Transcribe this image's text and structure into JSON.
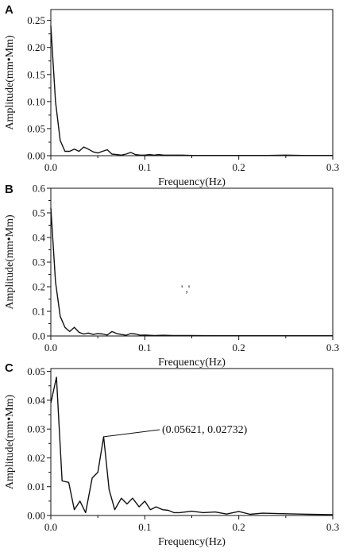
{
  "chart_data": [
    {
      "panel": "A",
      "type": "line",
      "xlabel": "Frequency(Hz)",
      "ylabel": "Amplitude(mm•Mm)",
      "xlim": [
        0,
        0.3
      ],
      "ylim": [
        0,
        0.27
      ],
      "xticks": [
        "0.0",
        "0.1",
        "0.2",
        "0.3"
      ],
      "yticks": [
        "0.00",
        "0.05",
        "0.10",
        "0.15",
        "0.20",
        "0.25"
      ],
      "x": [
        0.0,
        0.005,
        0.01,
        0.015,
        0.02,
        0.025,
        0.03,
        0.035,
        0.04,
        0.045,
        0.05,
        0.055,
        0.06,
        0.065,
        0.07,
        0.075,
        0.08,
        0.085,
        0.09,
        0.095,
        0.1,
        0.105,
        0.11,
        0.115,
        0.12,
        0.13,
        0.14,
        0.15,
        0.17,
        0.2,
        0.23,
        0.25,
        0.27,
        0.3
      ],
      "y": [
        0.24,
        0.1,
        0.028,
        0.008,
        0.008,
        0.012,
        0.008,
        0.016,
        0.012,
        0.007,
        0.005,
        0.008,
        0.011,
        0.003,
        0.002,
        0.001,
        0.003,
        0.006,
        0.002,
        0.001,
        0.001,
        0.002,
        0.001,
        0.002,
        0.001,
        0.001,
        0.001,
        0.0005,
        0.0005,
        0.0005,
        0.0005,
        0.001,
        0.0005,
        0.0005
      ]
    },
    {
      "panel": "B",
      "type": "line",
      "xlabel": "Frequency(Hz)",
      "ylabel": "Amplitude(mm•Mm)",
      "xlim": [
        0,
        0.3
      ],
      "ylim": [
        0,
        0.6
      ],
      "xticks": [
        "0.0",
        "0.1",
        "0.2",
        "0.3"
      ],
      "yticks": [
        "0.0",
        "0.1",
        "0.2",
        "0.3",
        "0.4",
        "0.5",
        "0.6"
      ],
      "x": [
        0.0,
        0.005,
        0.01,
        0.015,
        0.02,
        0.025,
        0.03,
        0.035,
        0.04,
        0.045,
        0.05,
        0.055,
        0.06,
        0.065,
        0.07,
        0.075,
        0.08,
        0.085,
        0.09,
        0.095,
        0.1,
        0.11,
        0.12,
        0.13,
        0.15,
        0.17,
        0.2,
        0.23,
        0.25,
        0.27,
        0.3
      ],
      "y": [
        0.52,
        0.22,
        0.08,
        0.035,
        0.018,
        0.035,
        0.015,
        0.008,
        0.012,
        0.006,
        0.01,
        0.008,
        0.004,
        0.018,
        0.01,
        0.006,
        0.003,
        0.01,
        0.008,
        0.003,
        0.004,
        0.002,
        0.003,
        0.002,
        0.002,
        0.001,
        0.001,
        0.001,
        0.001,
        0.001,
        0.001
      ]
    },
    {
      "panel": "C",
      "type": "line",
      "xlabel": "Frequency(Hz)",
      "ylabel": "Amplitude(mm•Mm)",
      "xlim": [
        0,
        0.3
      ],
      "ylim": [
        0,
        0.051
      ],
      "xticks": [
        "0.0",
        "0.1",
        "0.2",
        "0.3"
      ],
      "yticks": [
        "0.00",
        "0.01",
        "0.02",
        "0.03",
        "0.04",
        "0.05"
      ],
      "x": [
        0.0,
        0.006,
        0.012,
        0.019,
        0.025,
        0.031,
        0.037,
        0.044,
        0.05,
        0.05621,
        0.062,
        0.068,
        0.075,
        0.081,
        0.087,
        0.094,
        0.1,
        0.106,
        0.112,
        0.119,
        0.125,
        0.131,
        0.137,
        0.15,
        0.162,
        0.175,
        0.187,
        0.2,
        0.212,
        0.225,
        0.25,
        0.275,
        0.3
      ],
      "y": [
        0.039,
        0.048,
        0.012,
        0.0115,
        0.002,
        0.005,
        0.001,
        0.013,
        0.015,
        0.02732,
        0.009,
        0.002,
        0.006,
        0.004,
        0.006,
        0.003,
        0.005,
        0.002,
        0.003,
        0.002,
        0.0018,
        0.001,
        0.001,
        0.0015,
        0.001,
        0.0012,
        0.0005,
        0.0014,
        0.0004,
        0.0008,
        0.0006,
        0.0004,
        0.0003
      ],
      "annotation": {
        "text": "(0.05621, 0.02732)",
        "x": 0.05621,
        "y": 0.02732
      }
    }
  ],
  "stray_mark": "' ,'"
}
